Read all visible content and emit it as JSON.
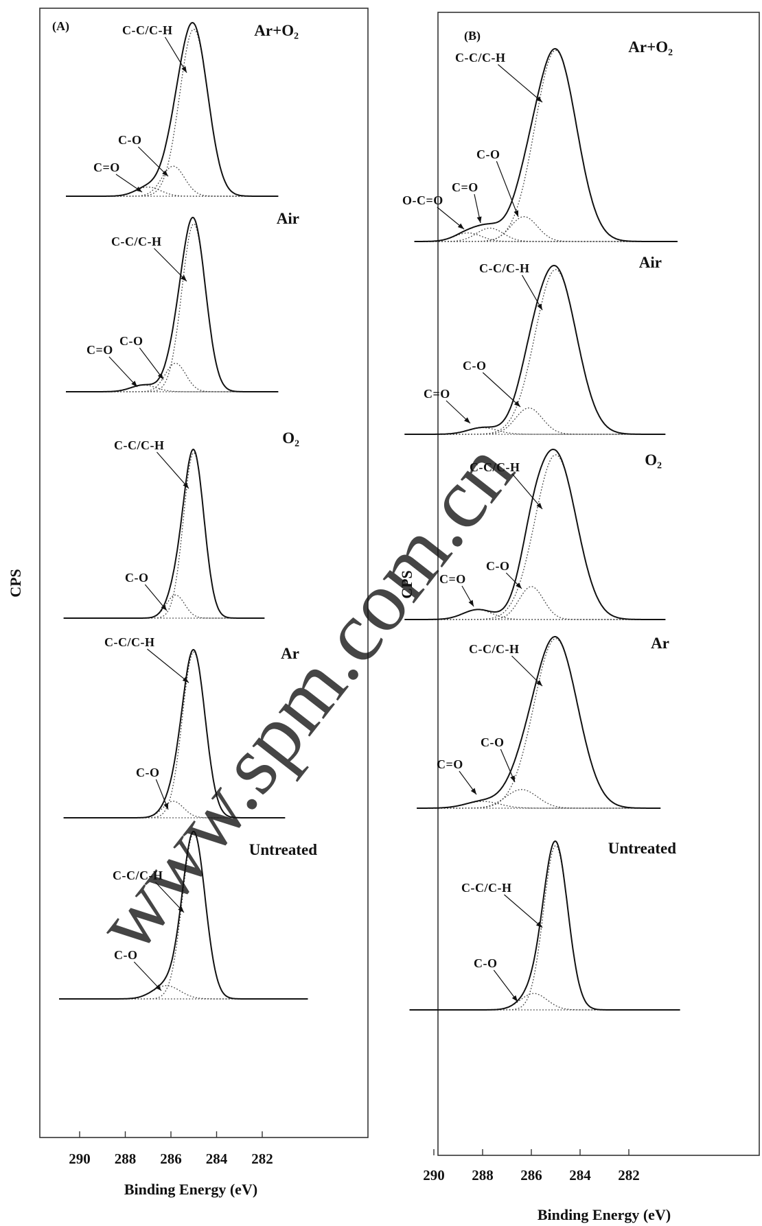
{
  "figure": {
    "watermark": "www.spm.com.cn",
    "ylabel": "CPS",
    "xlabel": "Binding Energy (eV)",
    "x_ticks": [
      290,
      288,
      286,
      284,
      282
    ],
    "colors": {
      "ink": "#111111",
      "watermark": "#18cfd3"
    }
  },
  "chart_data": [
    {
      "type": "line",
      "panel": "(A)",
      "xlabel": "Binding Energy (eV)",
      "ylabel": "CPS",
      "xlim": [
        291.5,
        279.8
      ],
      "x_reversed": true,
      "x_ticks": [
        290,
        288,
        286,
        284,
        282
      ],
      "spectra": [
        {
          "name": "Ar+O₂",
          "xrange": [
            290.6,
            281.3
          ],
          "components": [
            {
              "label": "C-C/C-H",
              "center": 285.0,
              "height": 1.0,
              "width": 0.62
            },
            {
              "label": "C-O",
              "center": 285.9,
              "height": 0.18,
              "width": 0.5
            },
            {
              "label": "C=O",
              "center": 287.0,
              "height": 0.055,
              "width": 0.55
            }
          ]
        },
        {
          "name": "Air",
          "xrange": [
            290.6,
            281.3
          ],
          "components": [
            {
              "label": "C-C/C-H",
              "center": 285.0,
              "height": 1.0,
              "width": 0.52
            },
            {
              "label": "C-O",
              "center": 285.8,
              "height": 0.17,
              "width": 0.45
            },
            {
              "label": "C=O",
              "center": 287.2,
              "height": 0.04,
              "width": 0.55
            }
          ]
        },
        {
          "name": "O₂",
          "xrange": [
            290.7,
            281.9
          ],
          "components": [
            {
              "label": "C-C/C-H",
              "center": 285.0,
              "height": 1.0,
              "width": 0.45
            },
            {
              "label": "C-O",
              "center": 285.8,
              "height": 0.14,
              "width": 0.4
            }
          ]
        },
        {
          "name": "Ar",
          "xrange": [
            290.7,
            281.0
          ],
          "components": [
            {
              "label": "C-C/C-H",
              "center": 285.0,
              "height": 1.0,
              "width": 0.5
            },
            {
              "label": "C-O",
              "center": 285.9,
              "height": 0.1,
              "width": 0.45
            }
          ]
        },
        {
          "name": "Untreated",
          "xrange": [
            290.9,
            280.0
          ],
          "components": [
            {
              "label": "C-C/C-H",
              "center": 285.0,
              "height": 1.0,
              "width": 0.5
            },
            {
              "label": "C-O",
              "center": 286.2,
              "height": 0.08,
              "width": 0.6
            }
          ]
        }
      ]
    },
    {
      "type": "line",
      "panel": "(B)",
      "xlabel": "Binding Energy (eV)",
      "ylabel": "CPS",
      "xlim": [
        291.2,
        279.6
      ],
      "x_reversed": true,
      "x_ticks": [
        290,
        288,
        286,
        284,
        282
      ],
      "spectra": [
        {
          "name": "Ar+O₂",
          "xrange": [
            290.8,
            280.0
          ],
          "components": [
            {
              "label": "C-C/C-H",
              "center": 285.0,
              "height": 1.0,
              "width": 0.85
            },
            {
              "label": "C-O",
              "center": 286.3,
              "height": 0.13,
              "width": 0.55
            },
            {
              "label": "C=O",
              "center": 287.7,
              "height": 0.07,
              "width": 0.55
            },
            {
              "label": "O-C=O",
              "center": 288.6,
              "height": 0.045,
              "width": 0.55
            }
          ]
        },
        {
          "name": "Air",
          "xrange": [
            291.2,
            280.5
          ],
          "components": [
            {
              "label": "C-C/C-H",
              "center": 285.0,
              "height": 1.0,
              "width": 0.85
            },
            {
              "label": "C-O",
              "center": 286.1,
              "height": 0.16,
              "width": 0.55
            },
            {
              "label": "C=O",
              "center": 288.0,
              "height": 0.04,
              "width": 0.6
            }
          ]
        },
        {
          "name": "O₂",
          "xrange": [
            291.2,
            280.5
          ],
          "components": [
            {
              "label": "C-C/C-H",
              "center": 285.0,
              "height": 1.0,
              "width": 0.85
            },
            {
              "label": "C-O",
              "center": 286.0,
              "height": 0.2,
              "width": 0.5
            },
            {
              "label": "C=O",
              "center": 288.2,
              "height": 0.06,
              "width": 0.6
            }
          ]
        },
        {
          "name": "Ar",
          "xrange": [
            290.7,
            280.7
          ],
          "components": [
            {
              "label": "C-C/C-H",
              "center": 285.0,
              "height": 1.0,
              "width": 0.9
            },
            {
              "label": "C-O",
              "center": 286.4,
              "height": 0.11,
              "width": 0.65
            },
            {
              "label": "C=O",
              "center": 288.0,
              "height": 0.04,
              "width": 0.7
            }
          ]
        },
        {
          "name": "Untreated",
          "xrange": [
            291.0,
            279.9
          ],
          "components": [
            {
              "label": "C-C/C-H",
              "center": 285.0,
              "height": 1.0,
              "width": 0.5
            },
            {
              "label": "C-O",
              "center": 285.9,
              "height": 0.1,
              "width": 0.55
            }
          ]
        }
      ]
    }
  ]
}
